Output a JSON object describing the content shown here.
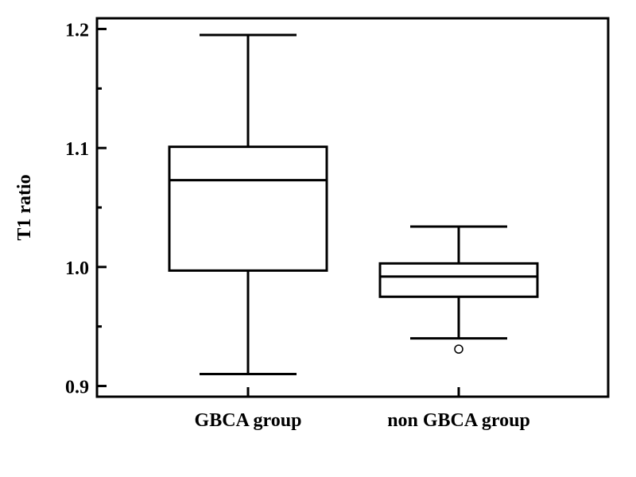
{
  "chart_data": {
    "type": "box",
    "title": "",
    "xlabel": "",
    "ylabel": "T1 ratio",
    "ylim": [
      0.891,
      1.209
    ],
    "yticks": [
      0.9,
      1.0,
      1.1,
      1.2
    ],
    "ytick_labels": [
      "0.9",
      "1.0",
      "1.1",
      "1.2"
    ],
    "minor_yticks": [
      0.95,
      1.05,
      1.15
    ],
    "grid": false,
    "categories": [
      "GBCA group",
      "non GBCA group"
    ],
    "series": [
      {
        "name": "GBCA group",
        "whisker_low": 0.91,
        "q1": 0.997,
        "median": 1.073,
        "q3": 1.101,
        "whisker_high": 1.195,
        "outliers": []
      },
      {
        "name": "non GBCA group",
        "whisker_low": 0.94,
        "q1": 0.975,
        "median": 0.992,
        "q3": 1.003,
        "whisker_high": 1.034,
        "outliers": [
          0.931
        ]
      }
    ]
  }
}
